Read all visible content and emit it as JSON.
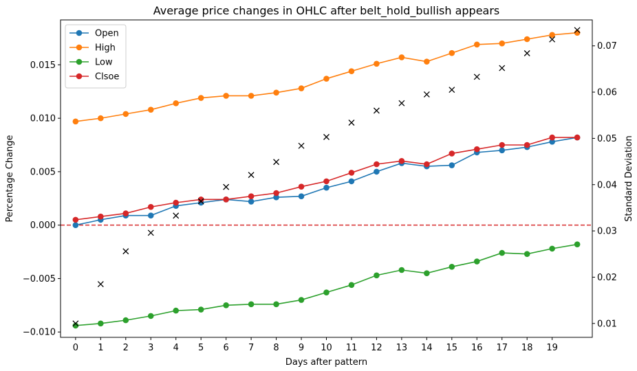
{
  "chart_data": {
    "type": "line",
    "title": "Average price changes in OHLC after belt_hold_bullish appears",
    "xlabel": "Days after pattern",
    "ylabel": "Percentage Change",
    "y2label": "Standard Deviation",
    "x": [
      0,
      1,
      2,
      3,
      4,
      5,
      6,
      7,
      8,
      9,
      10,
      11,
      12,
      13,
      14,
      15,
      16,
      17,
      18,
      19,
      20
    ],
    "xticks": [
      "0",
      "1",
      "2",
      "3",
      "4",
      "5",
      "6",
      "7",
      "8",
      "9",
      "10",
      "11",
      "12",
      "13",
      "14",
      "15",
      "16",
      "17",
      "18",
      "19"
    ],
    "ylim": [
      -0.0105,
      0.0192
    ],
    "yticks": [
      -0.01,
      -0.005,
      0.0,
      0.005,
      0.01,
      0.015
    ],
    "ytick_labels": [
      "−0.010",
      "−0.005",
      "0.000",
      "0.005",
      "0.010",
      "0.015"
    ],
    "y2lim": [
      0.007,
      0.0756
    ],
    "y2ticks": [
      0.01,
      0.02,
      0.03,
      0.04,
      0.05,
      0.06,
      0.07
    ],
    "y2tick_labels": [
      "0.01",
      "0.02",
      "0.03",
      "0.04",
      "0.05",
      "0.06",
      "0.07"
    ],
    "zero_line": {
      "y": 0,
      "color": "#d62728",
      "style": "dashed"
    },
    "legend_position": "upper-left",
    "series": [
      {
        "name": "Open",
        "color": "#1f77b4",
        "marker": "circle",
        "axis": "left",
        "values": [
          0.0,
          0.0005,
          0.0009,
          0.0009,
          0.0018,
          0.0021,
          0.0024,
          0.0022,
          0.0026,
          0.0027,
          0.0035,
          0.0041,
          0.005,
          0.0058,
          0.0055,
          0.0056,
          0.0068,
          0.007,
          0.0073,
          0.0078,
          0.0082
        ]
      },
      {
        "name": "High",
        "color": "#ff7f0e",
        "marker": "circle",
        "axis": "left",
        "values": [
          0.0097,
          0.01,
          0.0104,
          0.0108,
          0.0114,
          0.0119,
          0.0121,
          0.0121,
          0.0124,
          0.0128,
          0.0137,
          0.0144,
          0.0151,
          0.0157,
          0.0153,
          0.0161,
          0.0169,
          0.017,
          0.0174,
          0.0178,
          0.018
        ]
      },
      {
        "name": "Low",
        "color": "#2ca02c",
        "marker": "circle",
        "axis": "left",
        "values": [
          -0.0094,
          -0.0092,
          -0.0089,
          -0.0085,
          -0.008,
          -0.0079,
          -0.0075,
          -0.0074,
          -0.0074,
          -0.007,
          -0.0063,
          -0.0056,
          -0.0047,
          -0.0042,
          -0.0045,
          -0.0039,
          -0.0034,
          -0.0026,
          -0.0027,
          -0.0022,
          -0.0018
        ]
      },
      {
        "name": "Clsoe",
        "color": "#d62728",
        "marker": "circle",
        "axis": "left",
        "values": [
          0.0005,
          0.0008,
          0.0011,
          0.0017,
          0.0021,
          0.0024,
          0.0024,
          0.0027,
          0.003,
          0.0036,
          0.0041,
          0.0049,
          0.0057,
          0.006,
          0.0057,
          0.0067,
          0.0071,
          0.0075,
          0.0075,
          0.0082,
          0.0082
        ]
      },
      {
        "name": "Standard Deviation",
        "color": "#000000",
        "marker": "x",
        "axis": "right",
        "line": false,
        "values": [
          0.01,
          0.0185,
          0.0256,
          0.0296,
          0.0333,
          0.0364,
          0.0395,
          0.0421,
          0.0449,
          0.0484,
          0.0503,
          0.0534,
          0.056,
          0.0576,
          0.0595,
          0.0605,
          0.0633,
          0.0652,
          0.0684,
          0.0714,
          0.0734
        ]
      }
    ]
  }
}
